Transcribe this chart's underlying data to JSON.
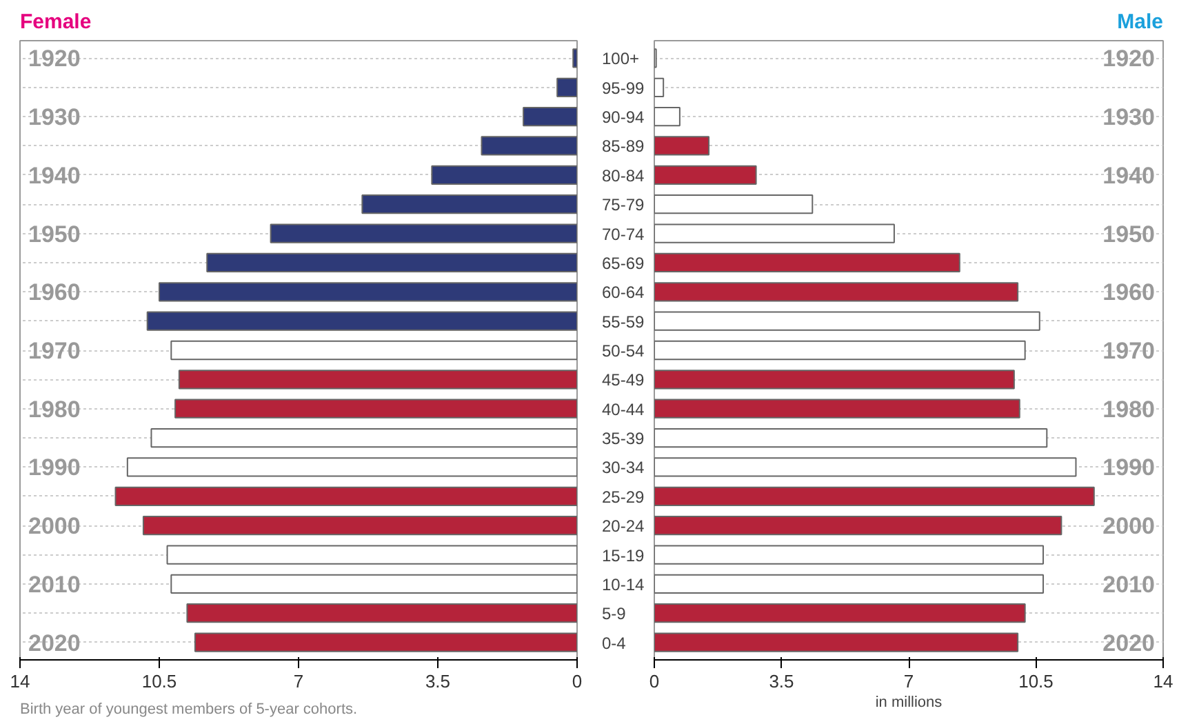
{
  "chart_data": [
    {
      "type": "bar",
      "orientation": "horizontal",
      "title": "Female",
      "categories": [
        "100+",
        "95-99",
        "90-94",
        "85-89",
        "80-84",
        "75-79",
        "70-74",
        "65-69",
        "60-64",
        "55-59",
        "50-54",
        "45-49",
        "40-44",
        "35-39",
        "30-34",
        "25-29",
        "20-24",
        "15-19",
        "10-14",
        "5-9",
        "0-4"
      ],
      "values": [
        0.1,
        0.5,
        1.35,
        2.4,
        3.65,
        5.4,
        7.7,
        9.3,
        10.5,
        10.8,
        10.2,
        10.0,
        10.1,
        10.7,
        11.3,
        11.6,
        10.9,
        10.3,
        10.2,
        9.8,
        9.6
      ],
      "colors": [
        "#2e3a78",
        "#2e3a78",
        "#2e3a78",
        "#2e3a78",
        "#2e3a78",
        "#2e3a78",
        "#2e3a78",
        "#2e3a78",
        "#2e3a78",
        "#2e3a78",
        "#ffffff",
        "#b5233a",
        "#b5233a",
        "#ffffff",
        "#ffffff",
        "#b5233a",
        "#b5233a",
        "#ffffff",
        "#ffffff",
        "#b5233a",
        "#b5233a"
      ],
      "xlim": [
        14,
        0
      ],
      "xticks": [
        14,
        10.5,
        7,
        3.5,
        0
      ],
      "grid": "y",
      "annotations": [
        "1920",
        "1930",
        "1940",
        "1950",
        "1960",
        "1970",
        "1980",
        "1990",
        "2000",
        "2010",
        "2020",
        "Birth year of youngest members of 5-year cohorts."
      ]
    },
    {
      "type": "bar",
      "orientation": "horizontal",
      "title": "Male",
      "xlabel": "in millions",
      "categories": [
        null,
        null,
        null,
        null,
        null,
        null,
        null,
        null,
        null,
        null,
        null,
        null,
        null,
        null,
        null,
        null,
        null,
        null,
        null,
        null,
        null
      ],
      "values": [
        0.05,
        0.25,
        0.7,
        1.5,
        2.8,
        4.35,
        6.6,
        8.4,
        10.0,
        10.6,
        10.2,
        9.9,
        10.05,
        10.8,
        11.6,
        12.1,
        11.2,
        10.7,
        10.7,
        10.2,
        10.0
      ],
      "colors": [
        "#ffffff",
        "#ffffff",
        "#ffffff",
        "#b5233a",
        "#b5233a",
        "#ffffff",
        "#ffffff",
        "#b5233a",
        "#b5233a",
        "#ffffff",
        "#ffffff",
        "#b5233a",
        "#b5233a",
        "#ffffff",
        "#ffffff",
        "#b5233a",
        "#b5233a",
        "#ffffff",
        "#ffffff",
        "#b5233a",
        "#b5233a"
      ],
      "xlim": [
        0,
        14
      ],
      "xticks": [
        0,
        3.5,
        7,
        10.5,
        14
      ],
      "grid": "y",
      "tick_labels": "x",
      "annotations": [
        "1920",
        "1930",
        "1940",
        "1950",
        "1960",
        "1970",
        "1980",
        "1990",
        "2000",
        "2010",
        "2020"
      ]
    }
  ]
}
